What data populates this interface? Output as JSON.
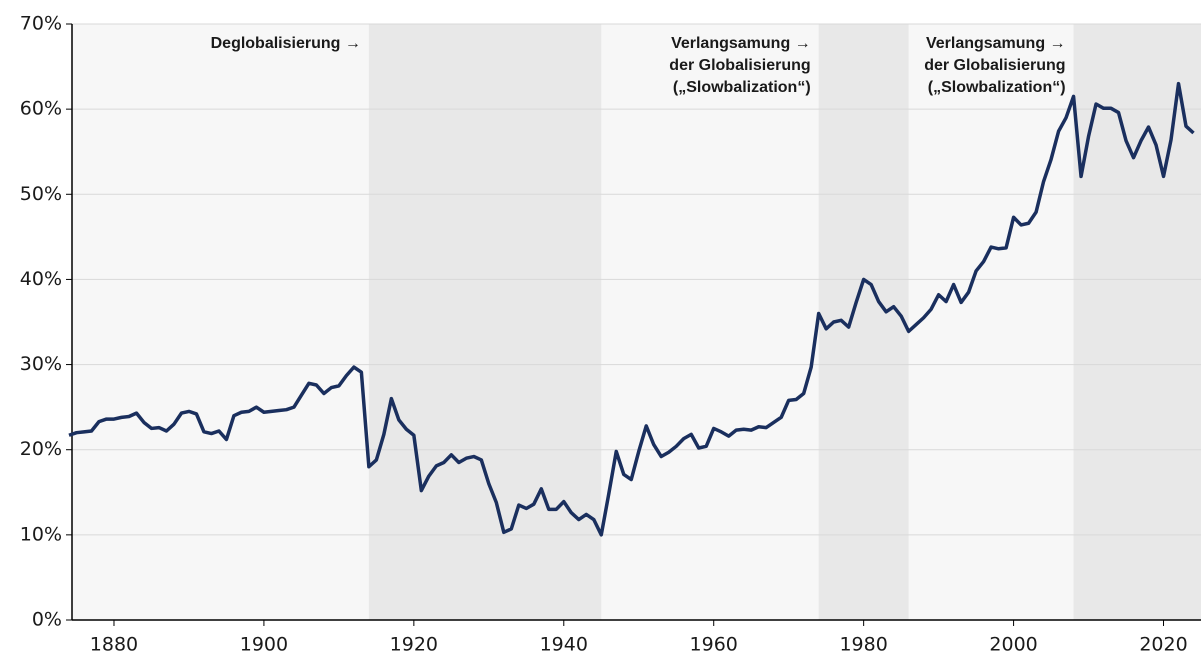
{
  "chart_data": {
    "type": "line",
    "x": [
      1874,
      1875,
      1876,
      1877,
      1878,
      1879,
      1880,
      1881,
      1882,
      1883,
      1884,
      1885,
      1886,
      1887,
      1888,
      1889,
      1890,
      1891,
      1892,
      1893,
      1894,
      1895,
      1896,
      1897,
      1898,
      1899,
      1900,
      1901,
      1902,
      1903,
      1904,
      1905,
      1906,
      1907,
      1908,
      1909,
      1910,
      1911,
      1912,
      1913,
      1914,
      1915,
      1916,
      1917,
      1918,
      1919,
      1920,
      1921,
      1922,
      1923,
      1924,
      1925,
      1926,
      1927,
      1928,
      1929,
      1930,
      1931,
      1932,
      1933,
      1934,
      1935,
      1936,
      1937,
      1938,
      1939,
      1940,
      1941,
      1942,
      1943,
      1944,
      1945,
      1946,
      1947,
      1948,
      1949,
      1950,
      1951,
      1952,
      1953,
      1954,
      1955,
      1956,
      1957,
      1958,
      1959,
      1960,
      1961,
      1962,
      1963,
      1964,
      1965,
      1966,
      1967,
      1968,
      1969,
      1970,
      1971,
      1972,
      1973,
      1974,
      1975,
      1976,
      1977,
      1978,
      1979,
      1980,
      1981,
      1982,
      1983,
      1984,
      1985,
      1986,
      1987,
      1988,
      1989,
      1990,
      1991,
      1992,
      1993,
      1994,
      1995,
      1996,
      1997,
      1998,
      1999,
      2000,
      2001,
      2002,
      2003,
      2004,
      2005,
      2006,
      2007,
      2008,
      2009,
      2010,
      2011,
      2012,
      2013,
      2014,
      2015,
      2016,
      2017,
      2018,
      2019,
      2020,
      2021,
      2022,
      2023,
      2024
    ],
    "series": [
      {
        "color": "#1a2f5e",
        "values": [
          21.7,
          22,
          22.1,
          22.2,
          23.3,
          23.6,
          23.6,
          23.8,
          23.9,
          24.3,
          23.2,
          22.5,
          22.6,
          22.2,
          23,
          24.3,
          24.5,
          24.2,
          22.1,
          21.9,
          22.2,
          21.2,
          24,
          24.4,
          24.5,
          25,
          24.4,
          24.5,
          24.6,
          24.7,
          25,
          26.4,
          27.8,
          27.6,
          26.6,
          27.3,
          27.5,
          28.7,
          29.7,
          29.1,
          18,
          18.8,
          21.8,
          26,
          23.5,
          22.4,
          21.7,
          15.2,
          16.9,
          18.1,
          18.5,
          19.4,
          18.5,
          19,
          19.2,
          18.8,
          16,
          13.8,
          10.3,
          10.7,
          13.5,
          13.1,
          13.6,
          15.4,
          13,
          13,
          13.9,
          12.6,
          11.8,
          12.4,
          11.8,
          10,
          14.8,
          19.8,
          17.1,
          16.5,
          19.8,
          22.8,
          20.6,
          19.2,
          19.7,
          20.4,
          21.3,
          21.8,
          20.2,
          20.4,
          22.5,
          22.1,
          21.6,
          22.3,
          22.4,
          22.3,
          22.7,
          22.6,
          23.2,
          23.8,
          25.8,
          25.9,
          26.6,
          29.7,
          36,
          34.2,
          35,
          35.2,
          34.4,
          37.3,
          40,
          39.4,
          37.4,
          36.2,
          36.8,
          35.7,
          33.9,
          34.7,
          35.5,
          36.5,
          38.2,
          37.4,
          39.4,
          37.3,
          38.5,
          41,
          42.1,
          43.8,
          43.6,
          43.7,
          47.3,
          46.4,
          46.6,
          47.9,
          51.5,
          54.1,
          57.4,
          59,
          61.5,
          52.1,
          56.8,
          60.6,
          60.1,
          60.1,
          59.6,
          56.3,
          54.3,
          56.3,
          57.9,
          55.8,
          52.1,
          56.4,
          63,
          58,
          57.2
        ]
      }
    ],
    "xlim": [
      1874.4,
      2025
    ],
    "xticks": [
      1880,
      1900,
      1920,
      1940,
      1960,
      1980,
      2000,
      2020
    ],
    "ylim": [
      0,
      70
    ],
    "yticks": [
      {
        "value": 0,
        "label": "0%"
      },
      {
        "value": 10,
        "label": "10%"
      },
      {
        "value": 20,
        "label": "20%"
      },
      {
        "value": 30,
        "label": "30%"
      },
      {
        "value": 40,
        "label": "40%"
      },
      {
        "value": 50,
        "label": "50%"
      },
      {
        "value": 60,
        "label": "60%"
      },
      {
        "value": 70,
        "label": "70%"
      }
    ],
    "grid": true,
    "shaded_periods": [
      [
        1914,
        1945
      ],
      [
        1974,
        1986
      ],
      [
        2008,
        2025
      ]
    ],
    "annotations": [
      {
        "x": 1914,
        "lines": [
          "Deglobalisierung →"
        ]
      },
      {
        "x": 1974,
        "lines": [
          "Verlangsamung →",
          "der Globalisierung",
          "(„Slowbalization“)"
        ]
      },
      {
        "x": 2008,
        "lines": [
          "Verlangsamung →",
          "der Globalisierung",
          "(„Slowbalization“)"
        ]
      }
    ]
  }
}
